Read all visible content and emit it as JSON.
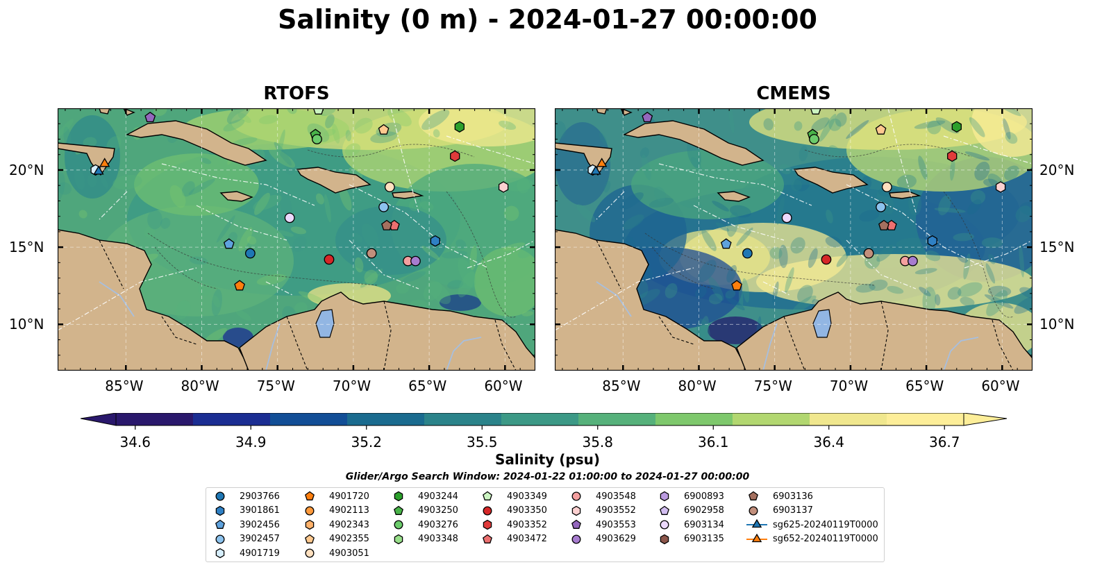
{
  "figure": {
    "title": "Salinity (0 m) - 2024-01-27 00:00:00",
    "search_window": "Glider/Argo Search Window: 2024-01-22 01:00:00 to 2024-01-27 00:00:00"
  },
  "colors": {
    "land": "#d2b48c",
    "pacific": "#2a1a6a",
    "lake": "#92b6e3",
    "rivers": "#a7bfdf",
    "colormap": [
      "#2a186c",
      "#1b2d92",
      "#124e96",
      "#1a6b8f",
      "#2b838a",
      "#3c9986",
      "#56b17b",
      "#7ec86c",
      "#b2d770",
      "#f0e78e",
      "#fdee99"
    ]
  },
  "chart_data": [
    {
      "type": "heatmap",
      "title": "RTOFS",
      "variable": "Salinity (0 m)",
      "xticks": [
        "85°W",
        "80°W",
        "75°W",
        "70°W",
        "65°W",
        "60°W"
      ],
      "yticks": [
        "20°N",
        "15°N",
        "10°N"
      ],
      "xlim": [
        -89.5,
        -58.0
      ],
      "ylim": [
        7.0,
        24.0
      ],
      "grid": true,
      "field_summary": "mostly 35.5–36.1 psu across the Caribbean, fresher (<35.0) near the Orinoco outflow and Gulf of Honduras, saltier (>36.4) north of the Antilles",
      "contours": "bathymetry contours labeled -100 and -1000 m"
    },
    {
      "type": "heatmap",
      "title": "CMEMS",
      "variable": "Salinity (0 m)",
      "xticks": [
        "85°W",
        "80°W",
        "75°W",
        "70°W",
        "65°W",
        "60°W"
      ],
      "yticks": [
        "20°N",
        "15°N",
        "10°N"
      ],
      "xlim": [
        -89.5,
        -58.0
      ],
      "ylim": [
        7.0,
        24.0
      ],
      "grid": true,
      "field_summary": "fresher band (35.0–35.3) across central/eastern Caribbean, high-salinity tongue (>36.5) off Colombia/Venezuela coast",
      "contours": "bathymetry contours labeled -100 and -1000 m"
    }
  ],
  "colorbar": {
    "label": "Salinity (psu)",
    "ticks": [
      "34.6",
      "34.9",
      "35.2",
      "35.5",
      "35.8",
      "36.1",
      "36.4",
      "36.7"
    ],
    "vmin": 34.55,
    "vmax": 36.75,
    "extend": "both"
  },
  "platforms": [
    {
      "id": "2903766",
      "color": "#1f77b4",
      "marker": "circle"
    },
    {
      "id": "3901861",
      "color": "#2f80c4",
      "marker": "hexagon"
    },
    {
      "id": "3902456",
      "color": "#5fa2dd",
      "marker": "pentagon"
    },
    {
      "id": "3902457",
      "color": "#8cc2ed",
      "marker": "circle"
    },
    {
      "id": "4901719",
      "color": "#d6eefc",
      "marker": "hexagon"
    },
    {
      "id": "4901720",
      "color": "#ff7f0e",
      "marker": "pentagon"
    },
    {
      "id": "4902113",
      "color": "#ff9a3c",
      "marker": "circle"
    },
    {
      "id": "4902343",
      "color": "#ffb26b",
      "marker": "hexagon"
    },
    {
      "id": "4902355",
      "color": "#ffc98f",
      "marker": "pentagon"
    },
    {
      "id": "4903051",
      "color": "#ffe0bf",
      "marker": "circle"
    },
    {
      "id": "4903244",
      "color": "#2ca02c",
      "marker": "hexagon"
    },
    {
      "id": "4903250",
      "color": "#49b349",
      "marker": "pentagon"
    },
    {
      "id": "4903276",
      "color": "#6bcb6b",
      "marker": "circle"
    },
    {
      "id": "4903348",
      "color": "#98df8a",
      "marker": "hexagon"
    },
    {
      "id": "4903349",
      "color": "#ccf5c2",
      "marker": "pentagon"
    },
    {
      "id": "4903350",
      "color": "#d62728",
      "marker": "circle"
    },
    {
      "id": "4903352",
      "color": "#e03b3b",
      "marker": "hexagon"
    },
    {
      "id": "4903472",
      "color": "#ec7070",
      "marker": "pentagon"
    },
    {
      "id": "4903548",
      "color": "#f49f9f",
      "marker": "circle"
    },
    {
      "id": "4903552",
      "color": "#fcd0d0",
      "marker": "hexagon"
    },
    {
      "id": "4903553",
      "color": "#9467bd",
      "marker": "pentagon"
    },
    {
      "id": "4903629",
      "color": "#a77ccf",
      "marker": "circle"
    },
    {
      "id": "6900893",
      "color": "#bb9be0",
      "marker": "hexagon"
    },
    {
      "id": "6902958",
      "color": "#d2bdf0",
      "marker": "pentagon"
    },
    {
      "id": "6903134",
      "color": "#ecd9fc",
      "marker": "circle"
    },
    {
      "id": "6903135",
      "color": "#8c564b",
      "marker": "hexagon"
    },
    {
      "id": "6903136",
      "color": "#a5705f",
      "marker": "pentagon"
    },
    {
      "id": "6903137",
      "color": "#c28f7c",
      "marker": "circle"
    },
    {
      "id": "sg625-20240119T0000",
      "color": "#1f77b4",
      "marker": "triangle",
      "line": true
    },
    {
      "id": "sg652-20240119T0000",
      "color": "#ff7f0e",
      "marker": "triangle",
      "line": true
    }
  ],
  "observations": [
    {
      "id": "2903766",
      "lon": -76.8,
      "lat": 14.6
    },
    {
      "id": "3901861",
      "lon": -64.6,
      "lat": 15.4
    },
    {
      "id": "3902456",
      "lon": -78.2,
      "lat": 15.2
    },
    {
      "id": "3902457",
      "lon": -68.0,
      "lat": 17.6
    },
    {
      "id": "4901719",
      "lon": -87.0,
      "lat": 20.0
    },
    {
      "id": "4901720",
      "lon": -77.5,
      "lat": 12.5
    },
    {
      "id": "4903051",
      "lon": -67.6,
      "lat": 18.9
    },
    {
      "id": "4902355",
      "lon": -68.0,
      "lat": 22.6
    },
    {
      "id": "4903244",
      "lon": -63.0,
      "lat": 22.8
    },
    {
      "id": "4903250",
      "lon": -72.5,
      "lat": 22.3
    },
    {
      "id": "4903276",
      "lon": -72.4,
      "lat": 22.0
    },
    {
      "id": "4903349",
      "lon": -72.3,
      "lat": 23.9
    },
    {
      "id": "4903350",
      "lon": -71.6,
      "lat": 14.2
    },
    {
      "id": "4903352",
      "lon": -63.3,
      "lat": 20.9
    },
    {
      "id": "4903472",
      "lon": -67.3,
      "lat": 16.4
    },
    {
      "id": "4903548",
      "lon": -66.4,
      "lat": 14.1
    },
    {
      "id": "4903552",
      "lon": -60.1,
      "lat": 18.9
    },
    {
      "id": "4903553",
      "lon": -83.4,
      "lat": 23.4
    },
    {
      "id": "4903629",
      "lon": -65.9,
      "lat": 14.1
    },
    {
      "id": "6903134",
      "lon": -74.2,
      "lat": 16.9
    },
    {
      "id": "6903136",
      "lon": -67.8,
      "lat": 16.4
    },
    {
      "id": "6903137",
      "lon": -68.8,
      "lat": 14.6
    },
    {
      "id": "sg625-20240119T0000",
      "lon": -86.8,
      "lat": 19.9
    },
    {
      "id": "sg652-20240119T0000",
      "lon": -86.4,
      "lat": 20.4
    }
  ]
}
